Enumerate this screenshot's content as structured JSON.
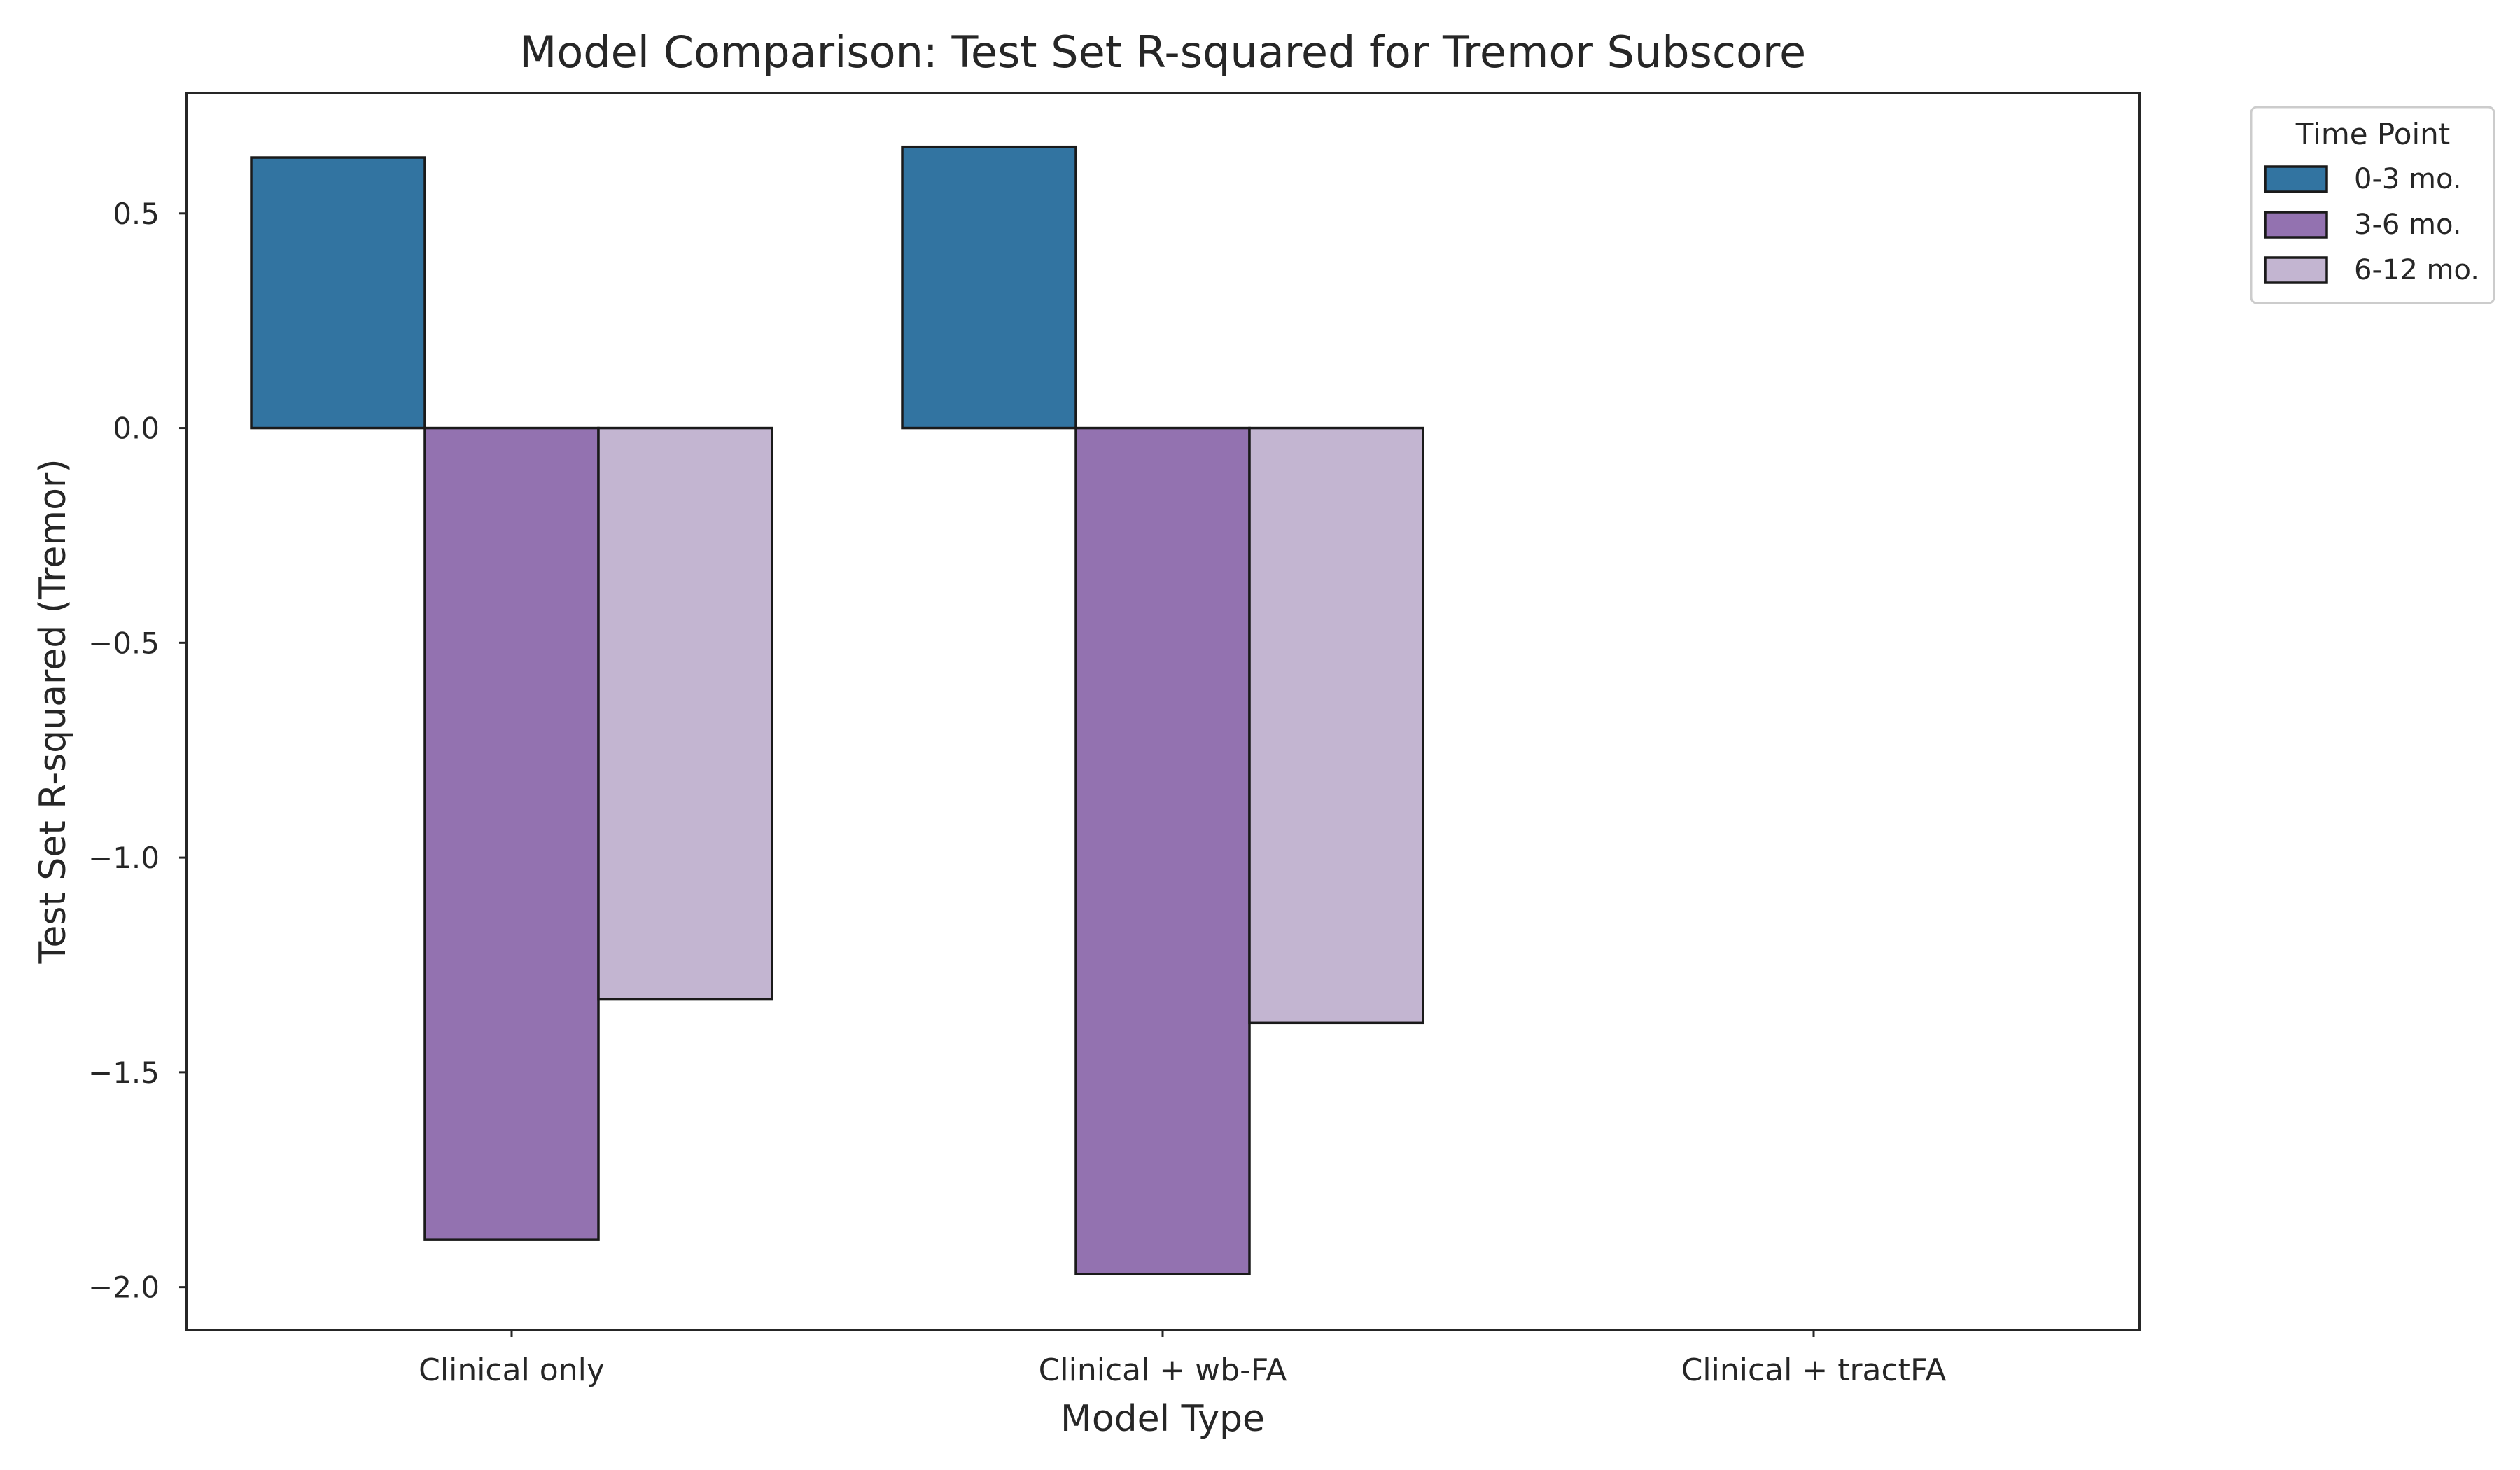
{
  "chart_data": {
    "type": "bar",
    "title": "Model Comparison: Test Set R-squared for Tremor Subscore",
    "xlabel": "Model Type",
    "ylabel": "Test Set R-squared (Tremor)",
    "categories": [
      "Clinical only",
      "Clinical + wb-FA",
      "Clinical + tractFA"
    ],
    "series": [
      {
        "name": "0-3 mo.",
        "color": "#3274a1",
        "values": [
          0.63,
          0.655,
          null
        ]
      },
      {
        "name": "3-6 mo.",
        "color": "#9372b0",
        "values": [
          -1.89,
          -1.97,
          null
        ]
      },
      {
        "name": "6-12 mo.",
        "color": "#c3b5d1",
        "values": [
          -1.33,
          -1.385,
          null
        ]
      }
    ],
    "ylim": [
      -2.1,
      0.78
    ],
    "yticks": [
      0.5,
      0.0,
      -0.5,
      -1.0,
      -1.5,
      -2.0
    ],
    "ytick_labels": [
      "0.5",
      "0.0",
      "−0.5",
      "−1.0",
      "−1.5",
      "−2.0"
    ],
    "grid": false,
    "legend": {
      "title": "Time Point",
      "position": "outside-top-right"
    }
  }
}
